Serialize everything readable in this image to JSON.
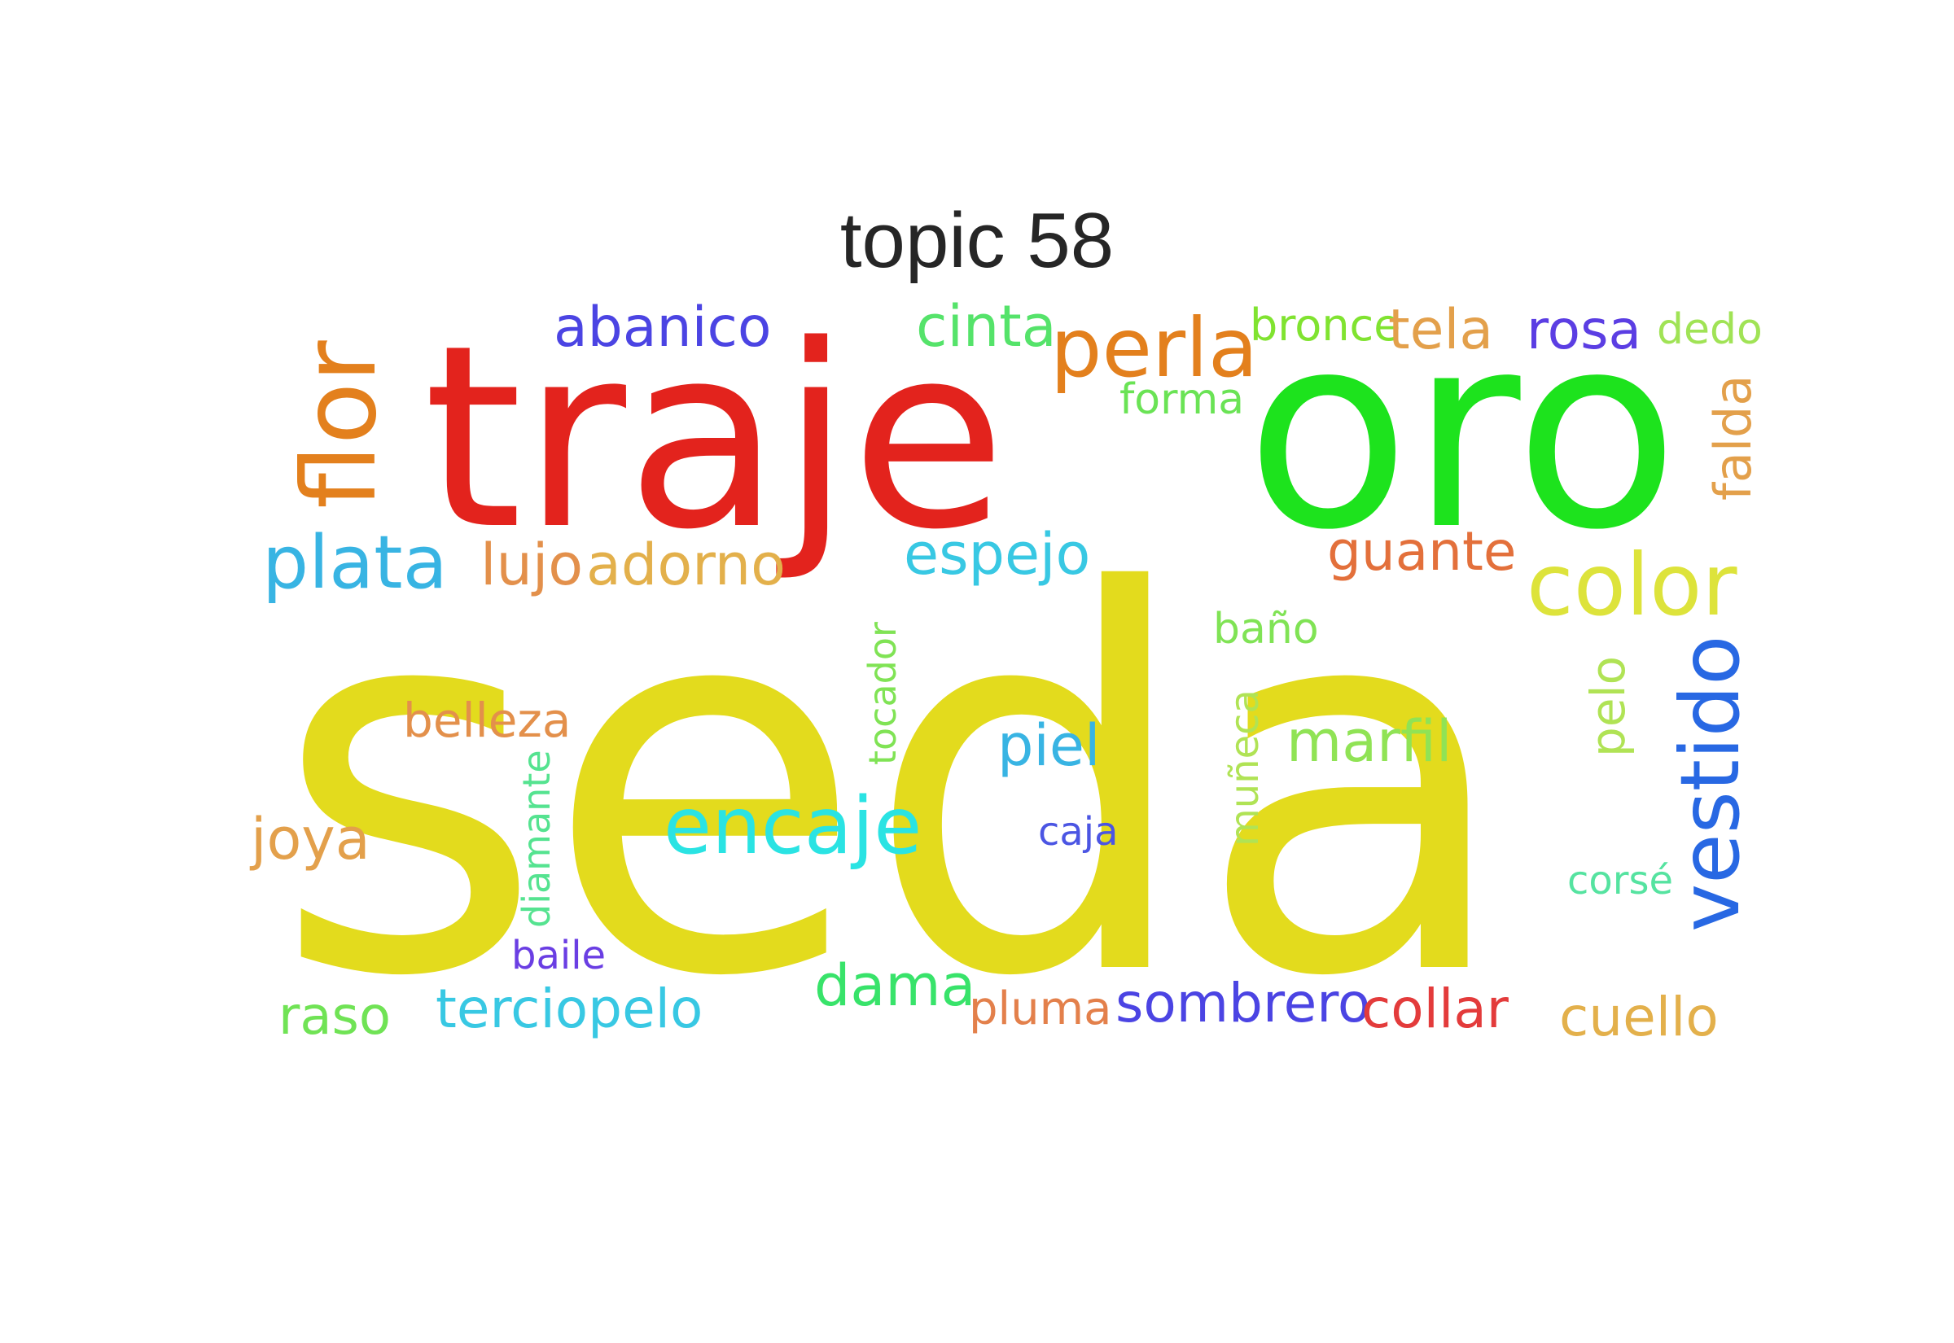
{
  "title": "topic 58",
  "words": [
    {
      "text": "seda",
      "color": "#e3db1d"
    },
    {
      "text": "traje",
      "color": "#e3231d"
    },
    {
      "text": "oro",
      "color": "#1de31d"
    },
    {
      "text": "flor",
      "color": "#e3801d"
    },
    {
      "text": "perla",
      "color": "#e3801d"
    },
    {
      "text": "abanico",
      "color": "#4b44e3"
    },
    {
      "text": "cinta",
      "color": "#55e36a"
    },
    {
      "text": "bronce",
      "color": "#80e330"
    },
    {
      "text": "tela",
      "color": "#e3a04b"
    },
    {
      "text": "rosa",
      "color": "#5b3ee3"
    },
    {
      "text": "dedo",
      "color": "#a0e355"
    },
    {
      "text": "forma",
      "color": "#6ae355"
    },
    {
      "text": "falda",
      "color": "#e3a04b"
    },
    {
      "text": "plata",
      "color": "#38b4e3"
    },
    {
      "text": "lujo",
      "color": "#e3904b"
    },
    {
      "text": "adorno",
      "color": "#e3b04b"
    },
    {
      "text": "espejo",
      "color": "#38c8e3"
    },
    {
      "text": "guante",
      "color": "#e3703b"
    },
    {
      "text": "color",
      "color": "#dde33b"
    },
    {
      "text": "baño",
      "color": "#80e355"
    },
    {
      "text": "tocador",
      "color": "#80e355"
    },
    {
      "text": "pelo",
      "color": "#b0e355"
    },
    {
      "text": "vestido",
      "color": "#2868e3"
    },
    {
      "text": "belleza",
      "color": "#e3904b"
    },
    {
      "text": "muñeca",
      "color": "#b0e355"
    },
    {
      "text": "piel",
      "color": "#38b4e3"
    },
    {
      "text": "marfil",
      "color": "#90e355"
    },
    {
      "text": "diamante",
      "color": "#55e390"
    },
    {
      "text": "encaje",
      "color": "#2ae3e3"
    },
    {
      "text": "joya",
      "color": "#e3a04b"
    },
    {
      "text": "caja",
      "color": "#4b55e3"
    },
    {
      "text": "corsé",
      "color": "#55e3a0"
    },
    {
      "text": "baile",
      "color": "#6a3ee3"
    },
    {
      "text": "dama",
      "color": "#38e36a"
    },
    {
      "text": "raso",
      "color": "#70e355"
    },
    {
      "text": "terciopelo",
      "color": "#38c8e3"
    },
    {
      "text": "pluma",
      "color": "#e3804b"
    },
    {
      "text": "sombrero",
      "color": "#4b44e3"
    },
    {
      "text": "collar",
      "color": "#e33b3b"
    },
    {
      "text": "cuello",
      "color": "#e3b04b"
    }
  ]
}
